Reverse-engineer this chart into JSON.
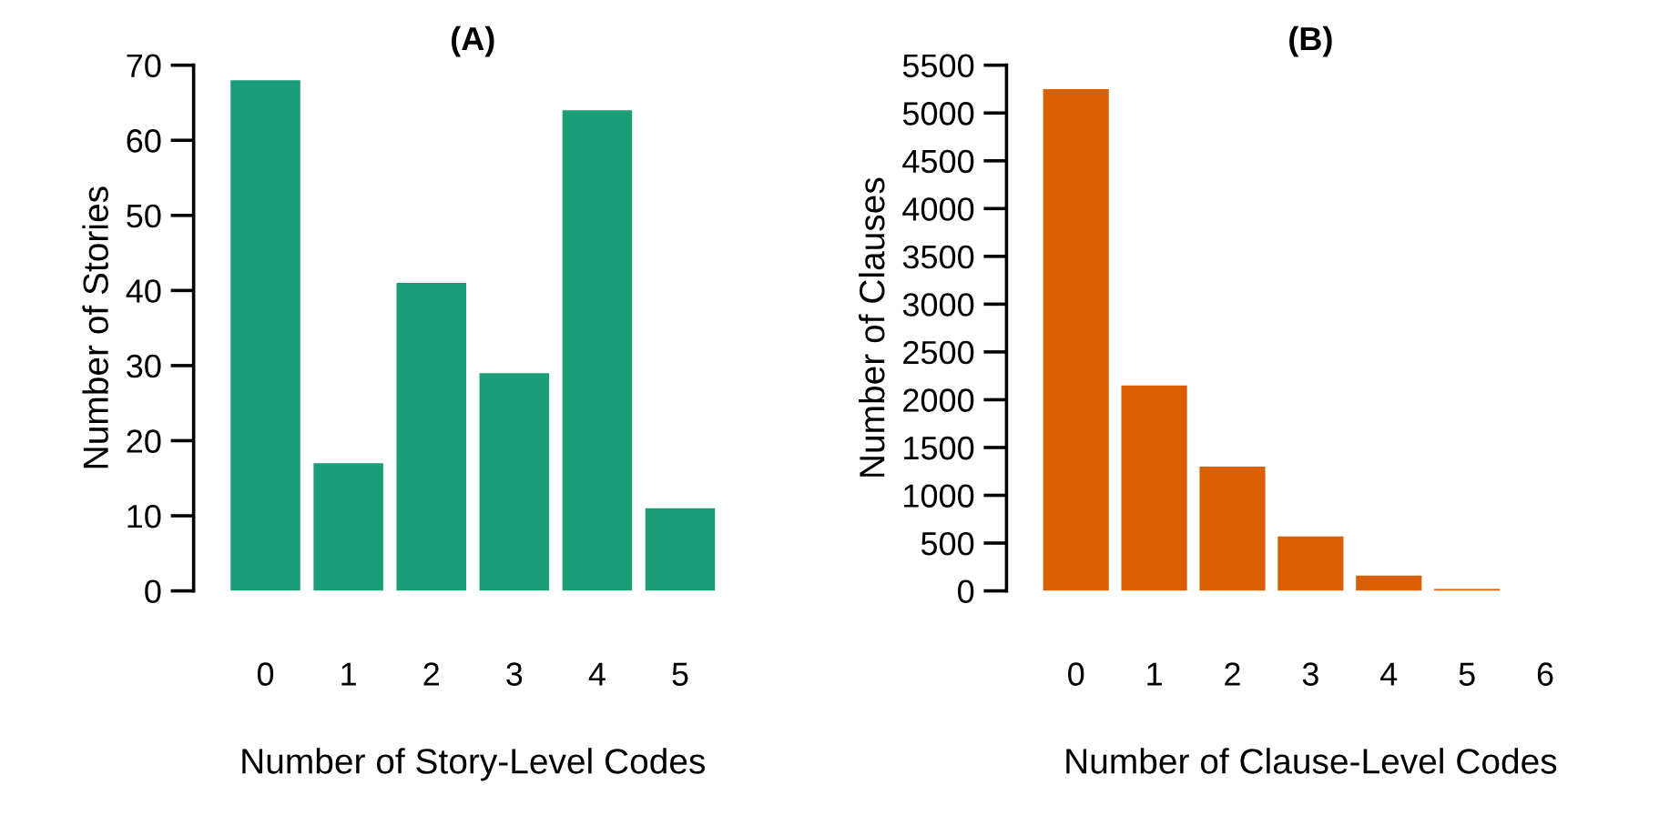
{
  "chart_data": [
    {
      "type": "bar",
      "title": "(A)",
      "xlabel": "Number of Story-Level Codes",
      "ylabel": "Number of Stories",
      "categories": [
        "0",
        "1",
        "2",
        "3",
        "4",
        "5"
      ],
      "values": [
        68,
        17,
        41,
        29,
        64,
        11
      ],
      "color": "#1b9e77",
      "ylim": [
        0,
        70
      ],
      "yticks": [
        0,
        10,
        20,
        30,
        40,
        50,
        60,
        70
      ],
      "grid": false
    },
    {
      "type": "bar",
      "title": "(B)",
      "xlabel": "Number of Clause-Level Codes",
      "ylabel": "Number of Clauses",
      "categories": [
        "0",
        "1",
        "2",
        "3",
        "4",
        "5",
        "6"
      ],
      "values": [
        5250,
        2150,
        1300,
        570,
        160,
        20,
        null
      ],
      "color": "#d95f02",
      "ylim": [
        0,
        5500
      ],
      "yticks": [
        0,
        500,
        1000,
        1500,
        2000,
        2500,
        3000,
        3500,
        4000,
        4500,
        5000,
        5500
      ],
      "grid": false
    }
  ]
}
